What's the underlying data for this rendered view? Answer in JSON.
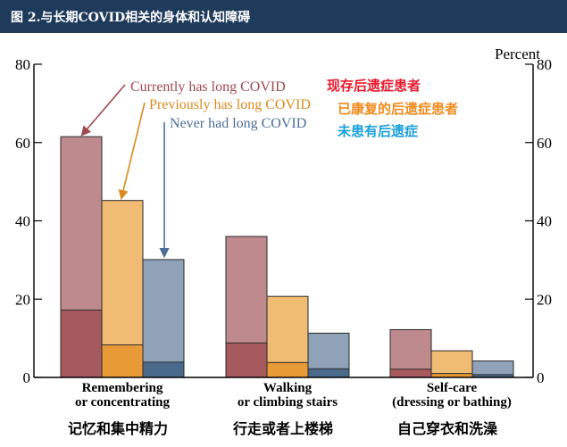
{
  "header": {
    "title": "图 2.与长期COVID相关的身体和认知障碍"
  },
  "chart_data": {
    "type": "bar",
    "unit_label": "Percent",
    "ylim": [
      0,
      80
    ],
    "yticks": [
      0,
      20,
      40,
      60,
      80
    ],
    "categories": [
      {
        "label_en_1": "Remembering",
        "label_en_2": "or concentrating",
        "label_zh": "记忆和集中精力"
      },
      {
        "label_en_1": "Walking",
        "label_en_2": "or climbing stairs",
        "label_zh": "行走或者上楼梯"
      },
      {
        "label_en_1": "Self-care",
        "label_en_2": "(dressing or bathing)",
        "label_zh": "自己穿衣和洗澡"
      }
    ],
    "series": [
      {
        "name": "Currently has long COVID",
        "name_zh": "现存后遗症患者",
        "color_light": "#bf8a8d",
        "color_dark": "#a75a5e",
        "label_color": "#9e4a4e",
        "zh_color": "#e8192c",
        "totals": [
          61.5,
          36,
          12.2
        ],
        "inner": [
          17.2,
          8.8,
          2.1
        ]
      },
      {
        "name": "Previously has long COVID",
        "name_zh": "已康复的后遗症患者",
        "color_light": "#f0bb73",
        "color_dark": "#e89a36",
        "label_color": "#d98a1f",
        "zh_color": "#f08a1c",
        "totals": [
          45.2,
          20.7,
          6.8
        ],
        "inner": [
          8.3,
          3.8,
          1.0
        ]
      },
      {
        "name": "Never had long COVID",
        "name_zh": "未患有后遗症",
        "color_light": "#8fa2b8",
        "color_dark": "#4a6a8c",
        "label_color": "#4a6f96",
        "zh_color": "#1aa0dc",
        "totals": [
          30.1,
          11.3,
          4.2
        ],
        "inner": [
          3.9,
          2.2,
          0.7
        ]
      }
    ]
  }
}
